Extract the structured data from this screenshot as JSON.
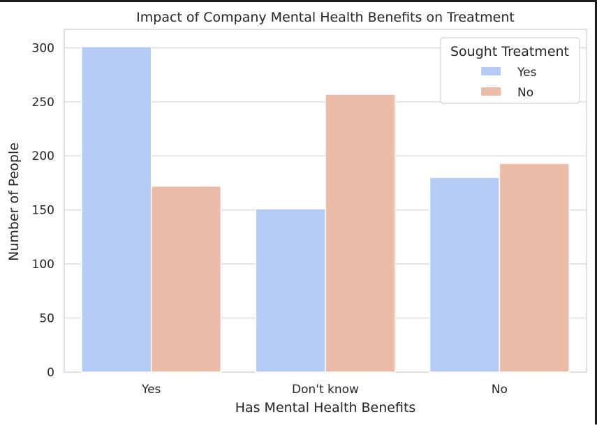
{
  "chart_data": {
    "type": "bar",
    "title": "Impact of Company Mental Health Benefits on Treatment",
    "xlabel": "Has Mental Health Benefits",
    "ylabel": "Number of People",
    "categories": [
      "Yes",
      "Don't know",
      "No"
    ],
    "series": [
      {
        "name": "Yes",
        "values": [
          301,
          151,
          180
        ],
        "color": "#b4cbf5"
      },
      {
        "name": "No",
        "values": [
          172,
          257,
          193
        ],
        "color": "#ebbca7"
      }
    ],
    "ylim": [
      0,
      317
    ],
    "yticks": [
      0,
      50,
      100,
      150,
      200,
      250,
      300
    ],
    "grid": true,
    "legend": {
      "title": "Sought Treatment",
      "position": "top-right"
    }
  }
}
